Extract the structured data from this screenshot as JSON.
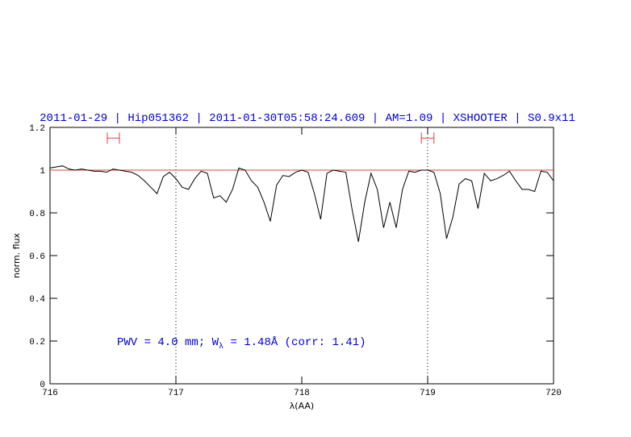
{
  "chart_data": {
    "type": "line",
    "title": "2011-01-29 | Hip051362 | 2011-01-30T05:58:24.609 | AM=1.09 | XSHOOTER | S0.9x11",
    "annotation": [
      "PWV = 4.0 mm; W",
      "λ",
      " = 1.48Å (corr: 1.41)"
    ],
    "xlabel": "λ(AA)",
    "ylabel": "norm. flux",
    "xlim": [
      716,
      720
    ],
    "ylim": [
      0,
      1.2
    ],
    "xticks": [
      716,
      717,
      718,
      719,
      720
    ],
    "yticks": [
      0,
      0.2,
      0.4,
      0.6,
      0.8,
      1,
      1.2
    ],
    "x": [
      716.0,
      716.05,
      716.1,
      716.15,
      716.2,
      716.25,
      716.3,
      716.35,
      716.4,
      716.45,
      716.5,
      716.55,
      716.6,
      716.65,
      716.7,
      716.75,
      716.8,
      716.85,
      716.9,
      716.95,
      717.0,
      717.05,
      717.1,
      717.15,
      717.2,
      717.25,
      717.3,
      717.35,
      717.4,
      717.45,
      717.5,
      717.55,
      717.6,
      717.65,
      717.7,
      717.75,
      717.8,
      717.85,
      717.9,
      717.95,
      718.0,
      718.05,
      718.1,
      718.15,
      718.2,
      718.25,
      718.3,
      718.35,
      718.4,
      718.45,
      718.5,
      718.55,
      718.6,
      718.65,
      718.7,
      718.75,
      718.8,
      718.85,
      718.9,
      718.95,
      719.0,
      719.05,
      719.1,
      719.15,
      719.2,
      719.25,
      719.3,
      719.35,
      719.4,
      719.45,
      719.5,
      719.55,
      719.6,
      719.65,
      719.7,
      719.75,
      719.8,
      719.85,
      719.9,
      719.95,
      720.0
    ],
    "series": [
      {
        "color": "#000000",
        "values": [
          1.01,
          1.015,
          1.02,
          1.005,
          1.0,
          1.005,
          1.0,
          0.995,
          0.995,
          0.99,
          1.005,
          1.0,
          0.995,
          0.99,
          0.975,
          0.95,
          0.92,
          0.89,
          0.97,
          0.99,
          0.96,
          0.92,
          0.91,
          0.96,
          0.995,
          0.985,
          0.87,
          0.88,
          0.85,
          0.91,
          1.01,
          1.0,
          0.95,
          0.92,
          0.85,
          0.76,
          0.93,
          0.975,
          0.97,
          0.99,
          1.0,
          0.99,
          0.89,
          0.77,
          0.985,
          1.0,
          0.995,
          0.99,
          0.815,
          0.665,
          0.85,
          0.985,
          0.91,
          0.73,
          0.85,
          0.73,
          0.91,
          0.995,
          0.99,
          1.0,
          1.0,
          0.99,
          0.89,
          0.68,
          0.78,
          0.935,
          0.96,
          0.95,
          0.82,
          0.985,
          0.95,
          0.96,
          0.975,
          0.995,
          0.95,
          0.91,
          0.91,
          0.9,
          0.995,
          0.99,
          0.95
        ]
      }
    ],
    "reference_line": {
      "value": 1,
      "color": "#e04040"
    },
    "vlines": [
      717,
      719
    ],
    "intervals": {
      "color": "#e04040",
      "y": 1.15,
      "ranges": [
        [
          716.455,
          716.551
        ],
        [
          718.95,
          719.05
        ]
      ]
    }
  }
}
